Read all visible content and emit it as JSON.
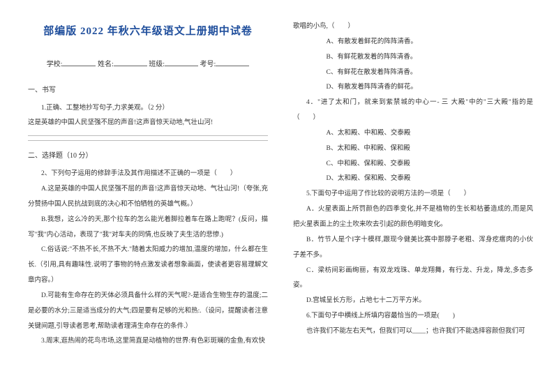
{
  "title": "部编版 2022 年秋六年级语文上册期中试卷",
  "meta": {
    "school": "学校:",
    "name": "姓名:",
    "class": "班级:",
    "examno": "考号:"
  },
  "left": {
    "sec1": "一、书写",
    "q1": "1.正确、工整地抄写句子,力求美观。（2 分）",
    "q1line": "这是英雄的中国人民坚强不屈的声音!这声音惊天动地,气壮山河!",
    "sec2": "二、选择题（10 分）",
    "q2": "2、下列句子运用的修辞手法及其作用描述不正确的一项是（　　）",
    "q2a": "A.这是英雄的中国人民坚强不屈的声音!这声音惊天动地、气壮山河!（夸张,充分赞扬中国人民抗战到底的决心和不怕牺牲的英雄气概。）",
    "q2b": "B.我想，这么冷的天,那个拉车的怎么能光着脚拉着车在路上跑呢？(反问，描写\"我\"内心活动，表现了\"我\"对车夫的同情,也反映了夫生活的悲惨.)",
    "q2c": "C.俗话说:\"不热不长,不热不大.\"随着太阳威力的增加,温度的增加，什么都在生长.（引用,具有趣味性.说明了事物的特点激发读者想象画面，使读者更容易理解文章内容。）",
    "q2d": "D.可能有生命存在的天体必须具备什么样的天气呢?-是适合生物生存的温度;二是必要的水分;三是适当成分的大气;四是要有足够的光和热:.（设问，提醒读者注意关键间题,引导读者思考,帮助读者理清生命存在的条件.）",
    "q3": "3.周末,逛热闹的花鸟市场,这里简直是动植物的世界:有色彩斑斓的金鱼,有欢快"
  },
  "right": {
    "r1": "歌唱的小鸟,（　　）",
    "r1a": "A、有散发着鲜花的阵阵清香。",
    "r1b": "B、有鲜花散发着的阵阵清香。",
    "r1c": "C、有鲜花在散发着阵阵清香。",
    "r1d": "D、有散发着阵阵清香的鲜花。",
    "q4": "4．\"进了太和门，就来到紫禁城的中心一- 三 大殿\"中的\"三大殿\"指的是（　　）",
    "q4a": "A、太和殿、中和殿、交泰殿",
    "q4b": "B、太和殿、中和殿、保和殿",
    "q4c": "C、中和殿、保和殿、交泰殿",
    "q4d": "D、太和殿、保和殿、交泰殿",
    "q5": "5.下面句子中运用了作比较的说明方法的一项是（　　）",
    "q5a": "A．火星表面上所罚颜色的四季变化,并不是植物的生长和枯萎造成的,而是风把火星表面上的尘土吹来吹去引|起的颜色明暗变化。",
    "q5b": "B．竹节人是个I字十模样,跟现今健美比赛中那脖子老粗、浑身疙瘩肉的小伙子差不多。",
    "q5c": "C．梁枋间彩画绚丽，有双龙戏珠、单龙翔舞，有行龙、升龙，降龙,多态多姿。",
    "q5d": "D.宫城呈长方形，占地七十二万平方米。",
    "q6": "6.下面句子中横线上所填内容最恰当的一项是(　　)",
    "q6line": "也许我们不能左右天气，但我们可以____；也许我们不能选择容颜但我们可"
  }
}
